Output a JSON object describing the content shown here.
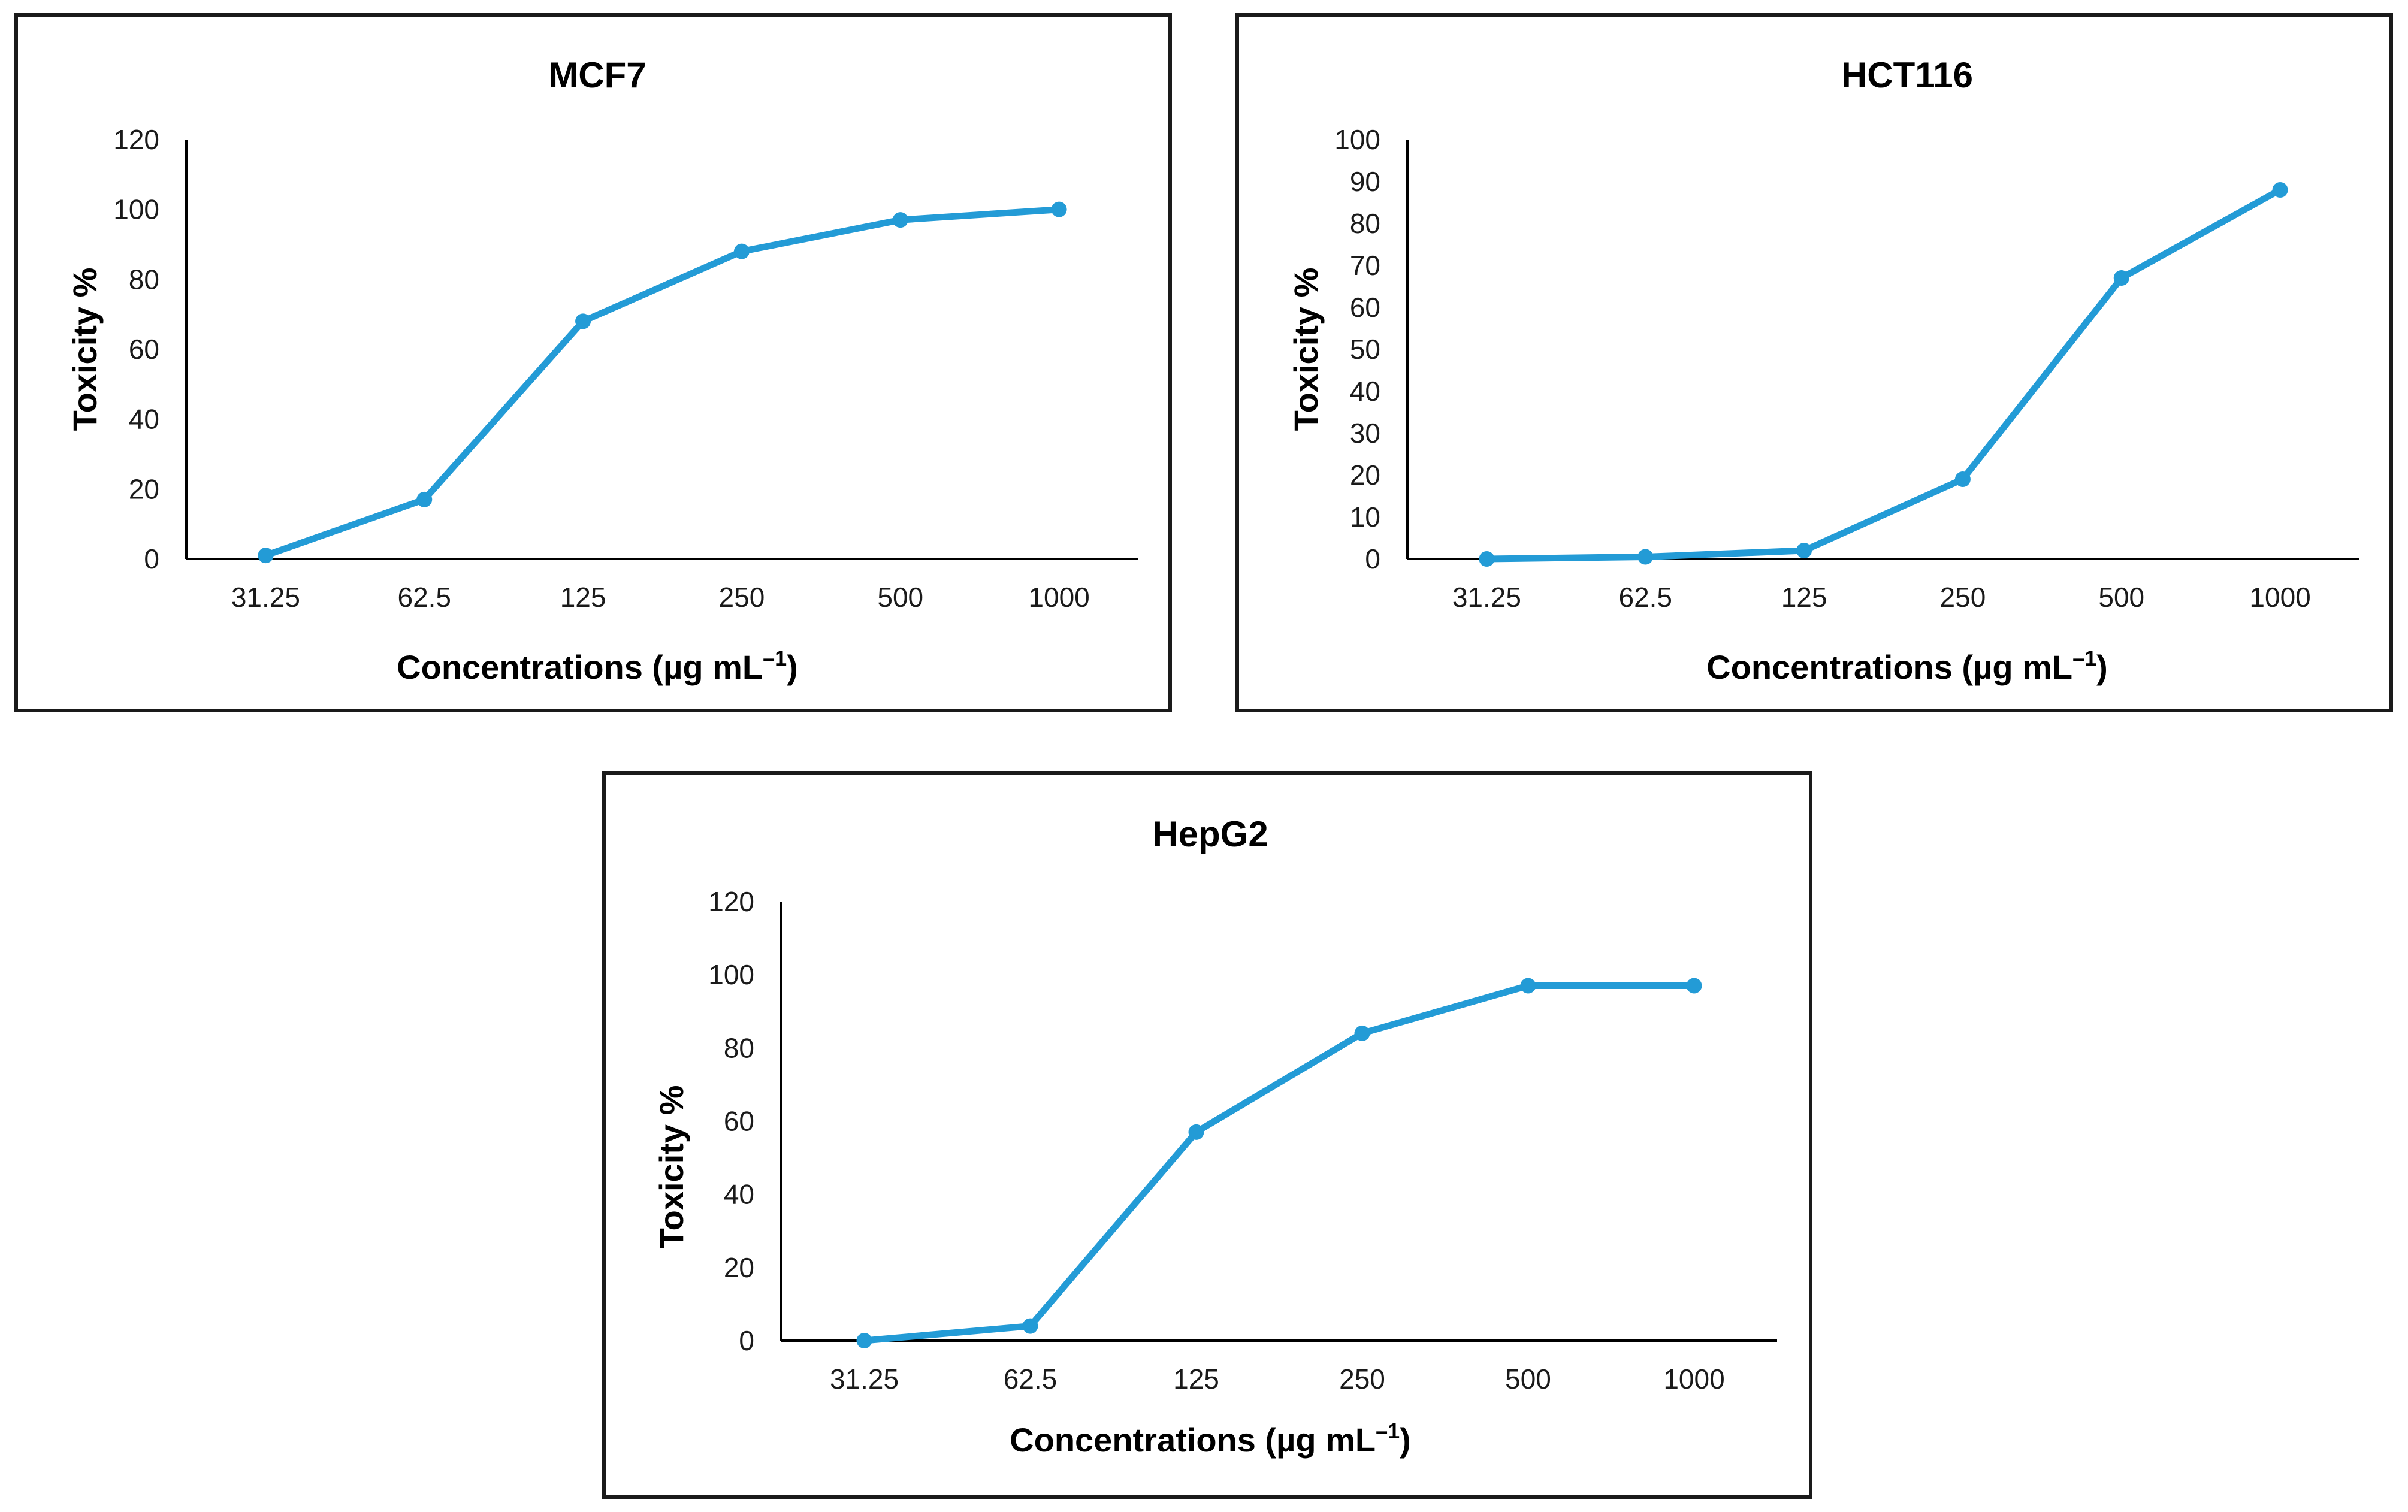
{
  "colors": {
    "series": "#239bd6",
    "axis": "#000000",
    "frame": "#1a1a1a"
  },
  "chart_data": [
    {
      "type": "line",
      "title": "MCF7",
      "xlabel_main": "Concentrations (µg mL",
      "xlabel_sup": "–1",
      "xlabel_close": ")",
      "ylabel": "Toxicity %",
      "categories": [
        "31.25",
        "62.5",
        "125",
        "250",
        "500",
        "1000"
      ],
      "values": [
        1,
        17,
        68,
        88,
        97,
        100
      ],
      "ylim": [
        0,
        120
      ],
      "yticks": [
        0,
        20,
        40,
        60,
        80,
        100,
        120
      ],
      "grid": false,
      "legend": "none"
    },
    {
      "type": "line",
      "title": "HCT116",
      "xlabel_main": "Concentrations (µg mL",
      "xlabel_sup": "–1",
      "xlabel_close": ")",
      "ylabel": "Toxicity %",
      "categories": [
        "31.25",
        "62.5",
        "125",
        "250",
        "500",
        "1000"
      ],
      "values": [
        0,
        0.5,
        2,
        19,
        67,
        88
      ],
      "ylim": [
        0,
        100
      ],
      "yticks": [
        0,
        10,
        20,
        30,
        40,
        50,
        60,
        70,
        80,
        90,
        100
      ],
      "grid": false,
      "legend": "none"
    },
    {
      "type": "line",
      "title": "HepG2",
      "xlabel_main": "Concentrations (µg mL",
      "xlabel_sup": "–1",
      "xlabel_close": ")",
      "ylabel": "Toxicity %",
      "categories": [
        "31.25",
        "62.5",
        "125",
        "250",
        "500",
        "1000"
      ],
      "values": [
        0,
        4,
        57,
        84,
        97,
        97
      ],
      "ylim": [
        0,
        120
      ],
      "yticks": [
        0,
        20,
        40,
        60,
        80,
        100,
        120
      ],
      "grid": false,
      "legend": "none"
    }
  ]
}
